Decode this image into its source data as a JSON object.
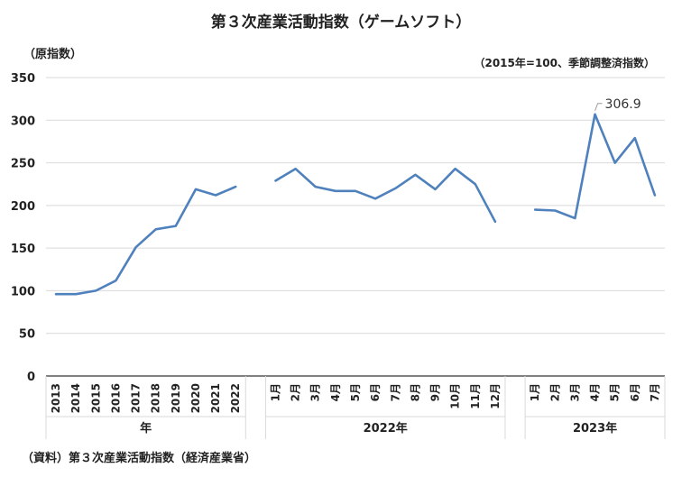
{
  "title": "第３次産業活動指数（ゲームソフト）",
  "y_unit": "（原指数）",
  "note": "（2015年=100、季節調整済指数）",
  "source": "（資料）第３次産業活動指数（経済産業省）",
  "colors": {
    "line": "#4f81bd",
    "grid": "#d9d9d9",
    "axis": "#000000"
  },
  "chart_data": {
    "type": "line",
    "ylim": [
      0,
      350
    ],
    "yticks": [
      0,
      50,
      100,
      150,
      200,
      250,
      300,
      350
    ],
    "grid": true,
    "groups": [
      {
        "label": "年",
        "categories": [
          "2013",
          "2014",
          "2015",
          "2016",
          "2017",
          "2018",
          "2019",
          "2020",
          "2021",
          "2022"
        ],
        "values": [
          96,
          96,
          100,
          112,
          151,
          172,
          176,
          219,
          212,
          222
        ]
      },
      {
        "label": "2022年",
        "categories": [
          "1月",
          "2月",
          "3月",
          "4月",
          "5月",
          "6月",
          "7月",
          "8月",
          "9月",
          "10月",
          "11月",
          "12月"
        ],
        "values": [
          229,
          243,
          222,
          217,
          217,
          208,
          220,
          236,
          219,
          243,
          225,
          181
        ]
      },
      {
        "label": "2023年",
        "categories": [
          "1月",
          "2月",
          "3月",
          "4月",
          "5月",
          "6月",
          "7月"
        ],
        "values": [
          195,
          194,
          185,
          306.9,
          250,
          279,
          212
        ]
      }
    ],
    "annotation": {
      "group": 2,
      "index": 3,
      "text": "306.9"
    }
  }
}
